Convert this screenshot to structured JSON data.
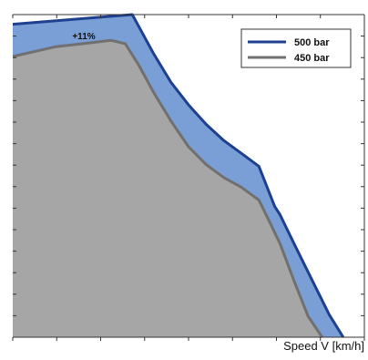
{
  "chart_data": {
    "type": "area",
    "xlabel": "Speed V [km/h]",
    "ylabel": "",
    "xlim": [
      0,
      100
    ],
    "ylim": [
      0,
      100
    ],
    "grid": false,
    "legend_position": "top-right",
    "annotation": "+11%",
    "series": [
      {
        "name": "500 bar",
        "color": "#1f3f8f",
        "fill": "#7a9ed6",
        "x": [
          0,
          34,
          36,
          40,
          45,
          50,
          55,
          60,
          65,
          70,
          74.5,
          76,
          80,
          85,
          90,
          94,
          100
        ],
        "y": [
          97,
          100,
          96,
          88,
          79,
          72,
          66,
          61,
          57,
          53,
          40.5,
          38,
          29,
          18,
          7,
          0,
          0
        ]
      },
      {
        "name": "450 bar",
        "color": "#707070",
        "fill": "#a6a6a6",
        "x": [
          0,
          6,
          12,
          20,
          28,
          32,
          36,
          40,
          45,
          50,
          55,
          60,
          65,
          70,
          72.5,
          76,
          80,
          84,
          88,
          100
        ],
        "y": [
          87,
          88.5,
          90,
          91,
          92,
          91,
          84,
          76,
          67,
          59,
          53.5,
          49.5,
          46.5,
          42.5,
          37,
          29,
          17.5,
          6.5,
          0,
          0
        ]
      }
    ]
  }
}
